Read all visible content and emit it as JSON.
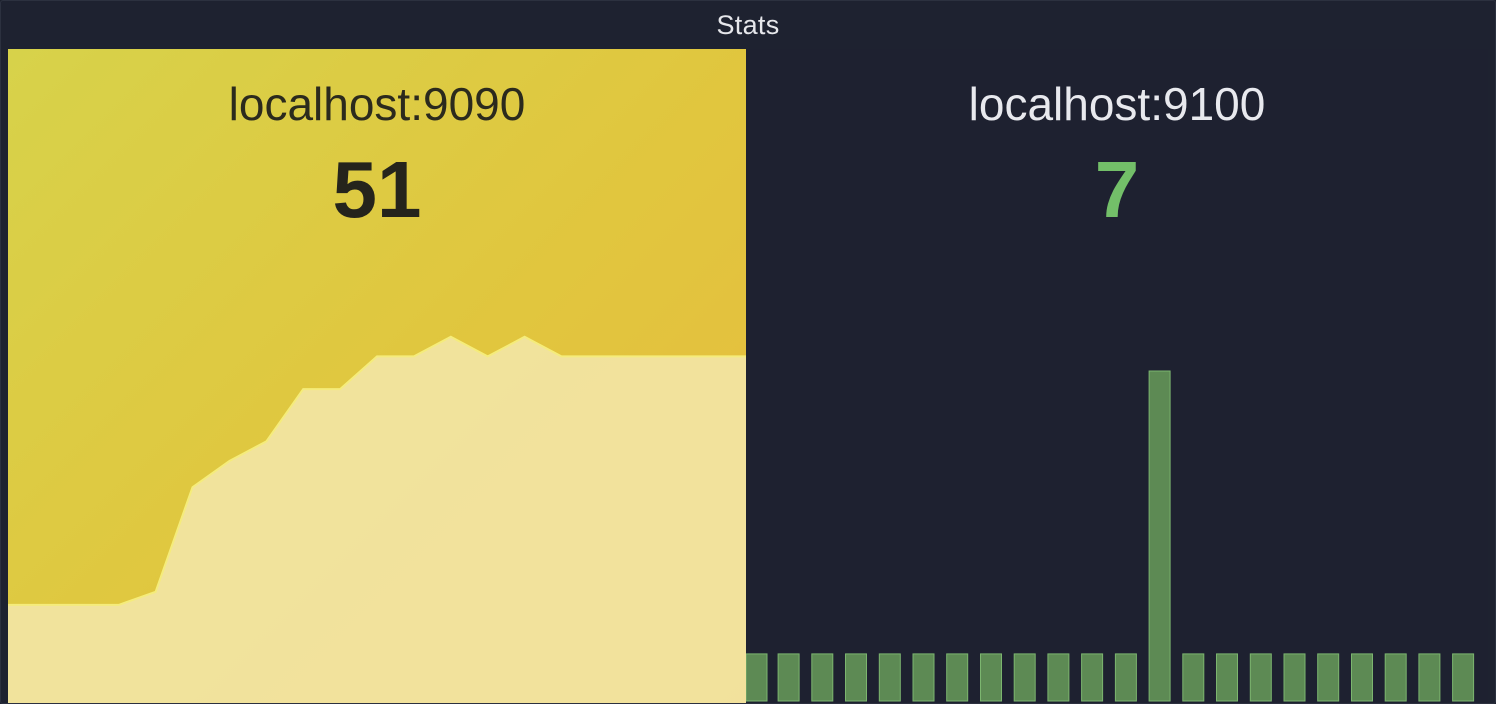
{
  "panel": {
    "title": "Stats"
  },
  "stats": [
    {
      "name": "localhost:9090",
      "value": "51",
      "sparkline": {
        "type": "area",
        "color_line": "#f5ec7a",
        "color_fill": "#f3e6a6",
        "values": [
          15,
          15,
          15,
          15,
          17,
          33,
          37,
          40,
          48,
          48,
          53,
          53,
          56,
          53,
          56,
          53,
          53,
          53,
          53,
          53,
          53
        ],
        "ylim": [
          0,
          100
        ]
      }
    },
    {
      "name": "localhost:9100",
      "value": "7",
      "sparkline": {
        "type": "bar",
        "color": "#73bf69",
        "values": [
          1,
          1,
          1,
          1,
          1,
          1,
          1,
          1,
          1,
          1,
          1,
          1,
          7,
          1,
          1,
          1,
          1,
          1,
          1,
          1,
          1,
          1
        ],
        "ylim": [
          0,
          7
        ]
      }
    }
  ]
}
